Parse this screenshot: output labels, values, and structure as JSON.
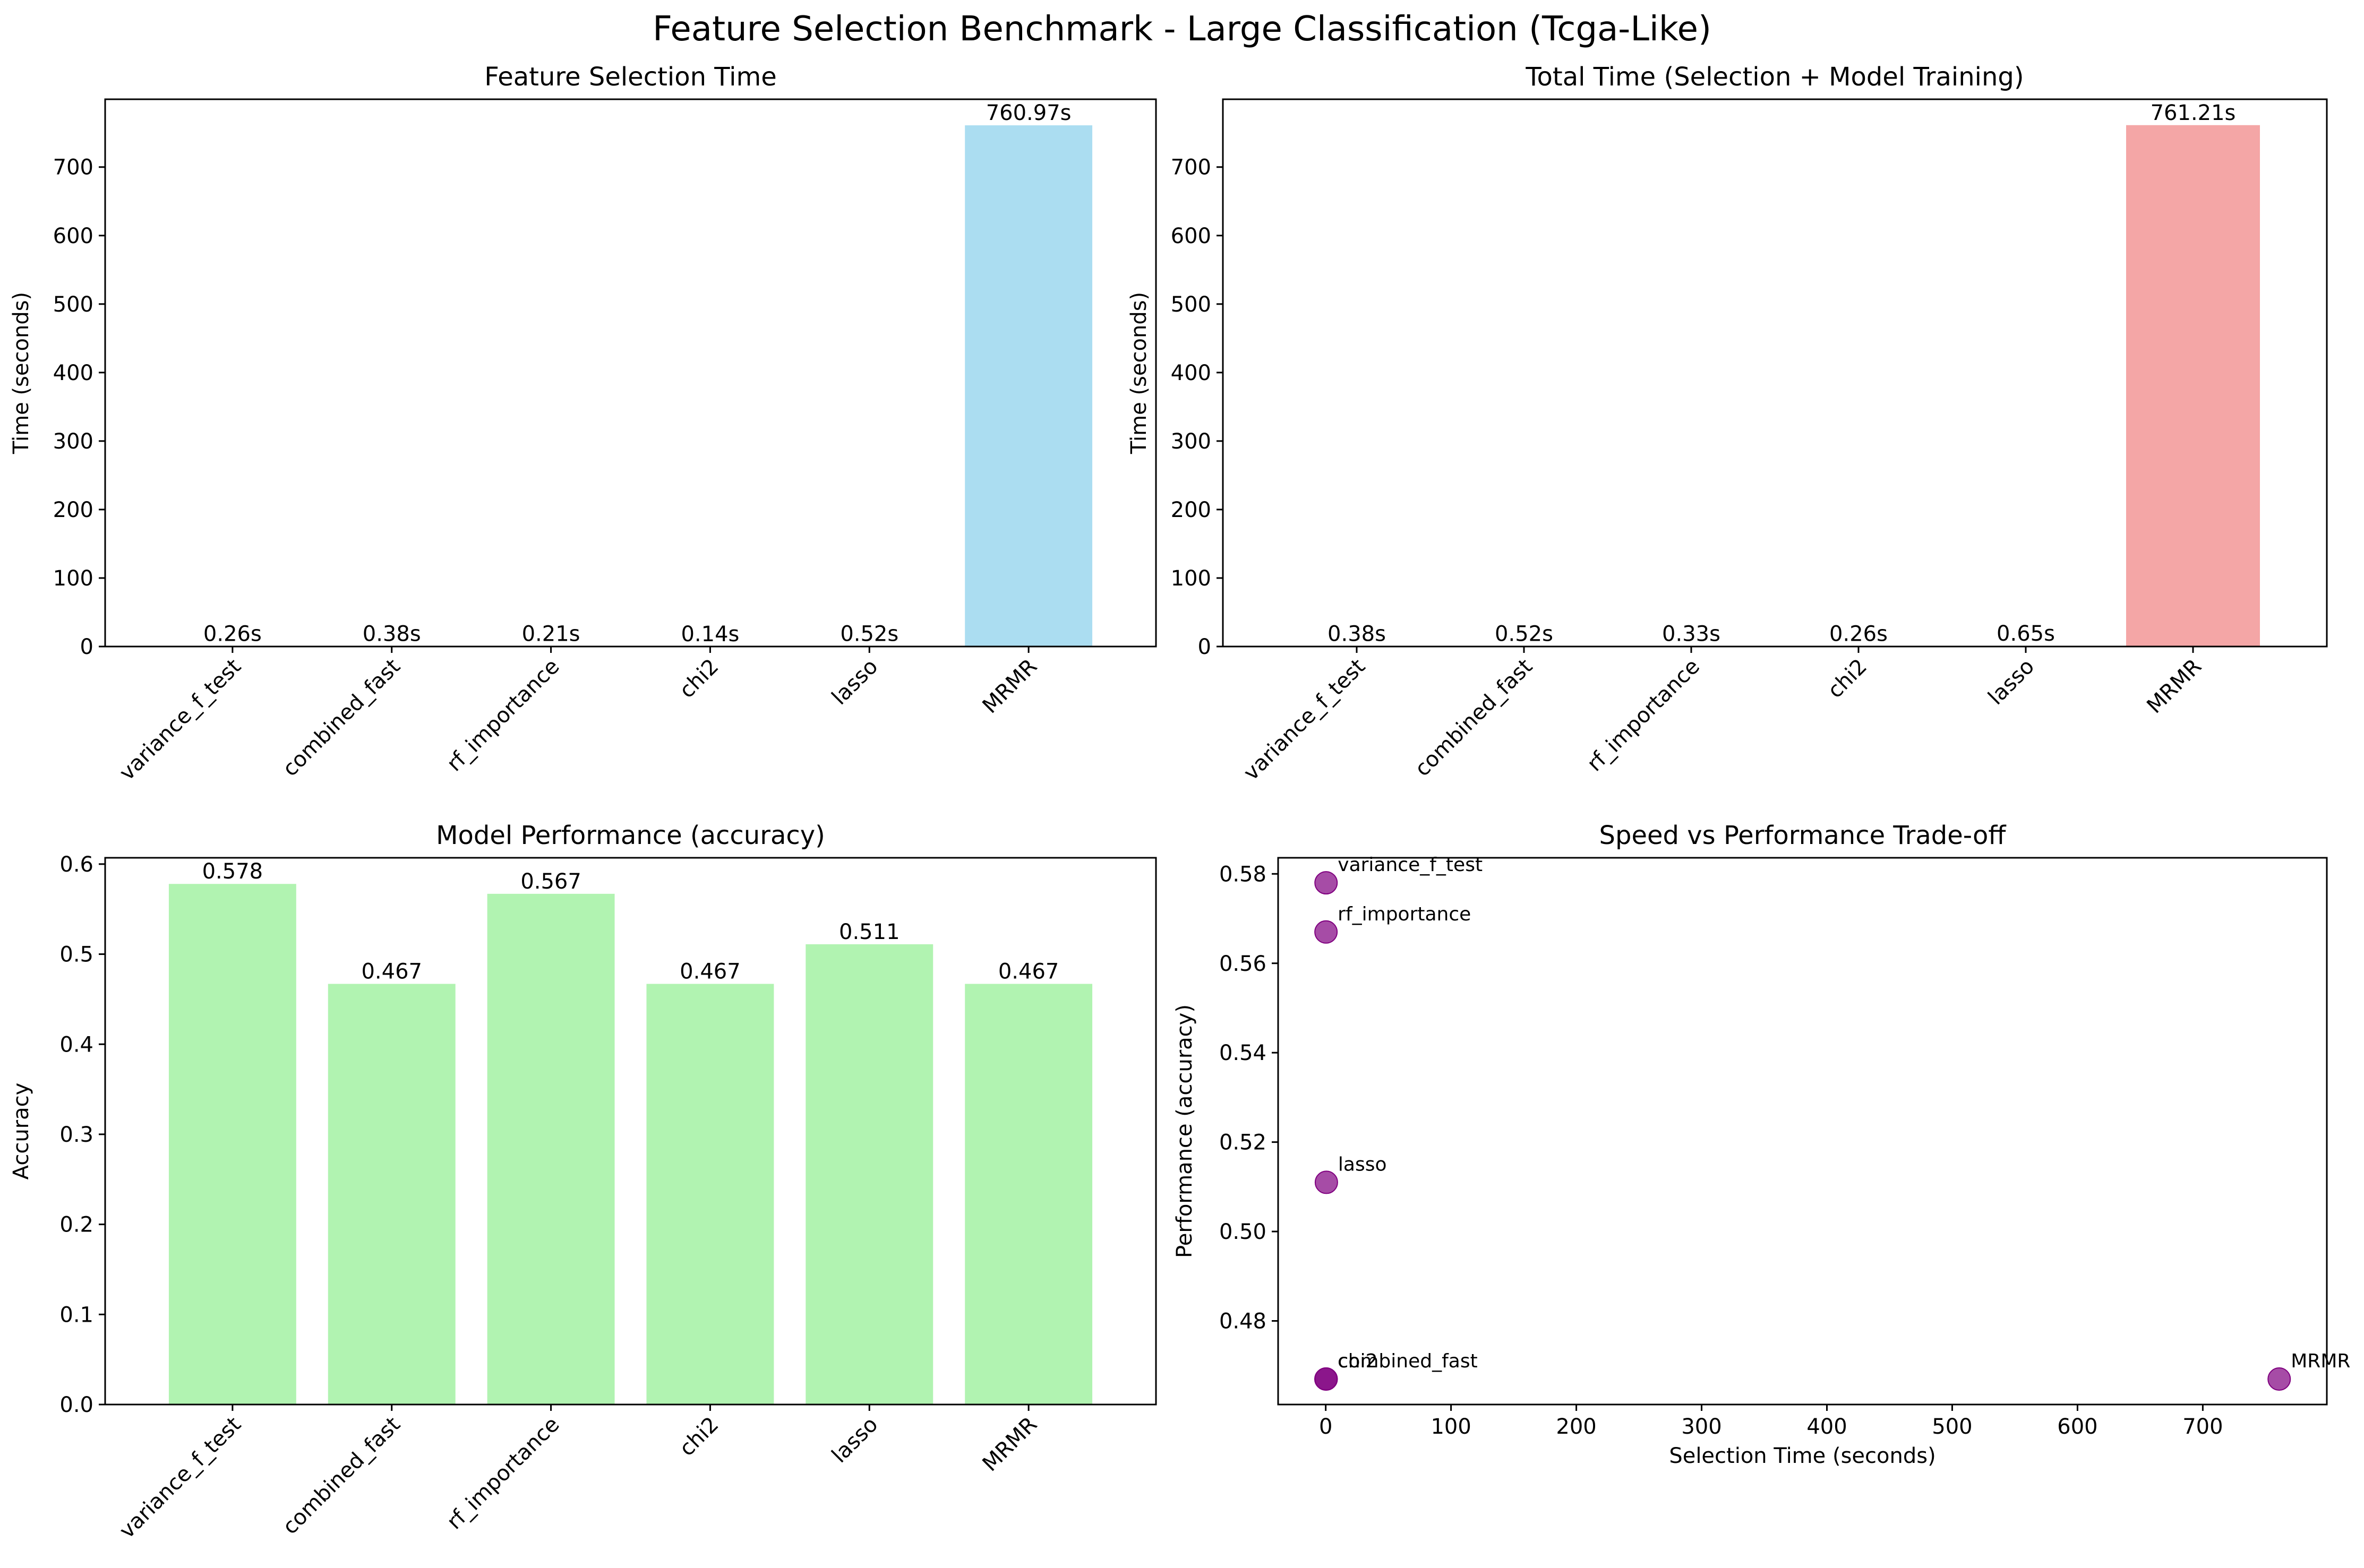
{
  "figure": {
    "title": "Feature Selection Benchmark - Large Classification (Tcga-Like)"
  },
  "chart_data": [
    {
      "id": "selection_time",
      "type": "bar",
      "title": "Feature Selection Time",
      "xlabel": "",
      "ylabel": "Time (seconds)",
      "categories": [
        "variance_f_test",
        "combined_fast",
        "rf_importance",
        "chi2",
        "lasso",
        "MRMR"
      ],
      "values": [
        0.26,
        0.38,
        0.21,
        0.14,
        0.52,
        760.97
      ],
      "value_labels": [
        "0.26s",
        "0.38s",
        "0.21s",
        "0.14s",
        "0.52s",
        "760.97s"
      ],
      "ylim": [
        0,
        799
      ],
      "yticks": [
        0,
        100,
        200,
        300,
        400,
        500,
        600,
        700
      ],
      "color": "#87ceeb",
      "grid": false
    },
    {
      "id": "total_time",
      "type": "bar",
      "title": "Total Time (Selection + Model Training)",
      "xlabel": "",
      "ylabel": "Time (seconds)",
      "categories": [
        "variance_f_test",
        "combined_fast",
        "rf_importance",
        "chi2",
        "lasso",
        "MRMR"
      ],
      "values": [
        0.38,
        0.52,
        0.33,
        0.26,
        0.65,
        761.21
      ],
      "value_labels": [
        "0.38s",
        "0.52s",
        "0.33s",
        "0.26s",
        "0.65s",
        "761.21s"
      ],
      "ylim": [
        0,
        799
      ],
      "yticks": [
        0,
        100,
        200,
        300,
        400,
        500,
        600,
        700
      ],
      "color": "#f08080",
      "grid": false
    },
    {
      "id": "performance",
      "type": "bar",
      "title": "Model Performance (accuracy)",
      "xlabel": "",
      "ylabel": "Accuracy",
      "categories": [
        "variance_f_test",
        "combined_fast",
        "rf_importance",
        "chi2",
        "lasso",
        "MRMR"
      ],
      "values": [
        0.578,
        0.467,
        0.567,
        0.467,
        0.511,
        0.467
      ],
      "value_labels": [
        "0.578",
        "0.467",
        "0.567",
        "0.467",
        "0.511",
        "0.467"
      ],
      "ylim": [
        0,
        0.607
      ],
      "yticks": [
        0.0,
        0.1,
        0.2,
        0.3,
        0.4,
        0.5,
        0.6
      ],
      "ytick_labels": [
        "0.0",
        "0.1",
        "0.2",
        "0.3",
        "0.4",
        "0.5",
        "0.6"
      ],
      "color": "#90ee90",
      "grid": false
    },
    {
      "id": "tradeoff",
      "type": "scatter",
      "title": "Speed vs Performance Trade-off",
      "xlabel": "Selection Time (seconds)",
      "ylabel": "Performance (accuracy)",
      "points": [
        {
          "label": "variance_f_test",
          "x": 0.26,
          "y": 0.578
        },
        {
          "label": "combined_fast",
          "x": 0.38,
          "y": 0.467
        },
        {
          "label": "rf_importance",
          "x": 0.21,
          "y": 0.567
        },
        {
          "label": "chi2",
          "x": 0.14,
          "y": 0.467
        },
        {
          "label": "lasso",
          "x": 0.52,
          "y": 0.511
        },
        {
          "label": "MRMR",
          "x": 760.97,
          "y": 0.467
        }
      ],
      "xlim": [
        -38,
        799
      ],
      "ylim": [
        0.4613,
        0.5836
      ],
      "xticks": [
        0,
        100,
        200,
        300,
        400,
        500,
        600,
        700
      ],
      "yticks": [
        0.48,
        0.5,
        0.52,
        0.54,
        0.56,
        0.58
      ],
      "ytick_labels": [
        "0.48",
        "0.50",
        "0.52",
        "0.54",
        "0.56",
        "0.58"
      ],
      "color": "#800080",
      "grid": false
    }
  ]
}
